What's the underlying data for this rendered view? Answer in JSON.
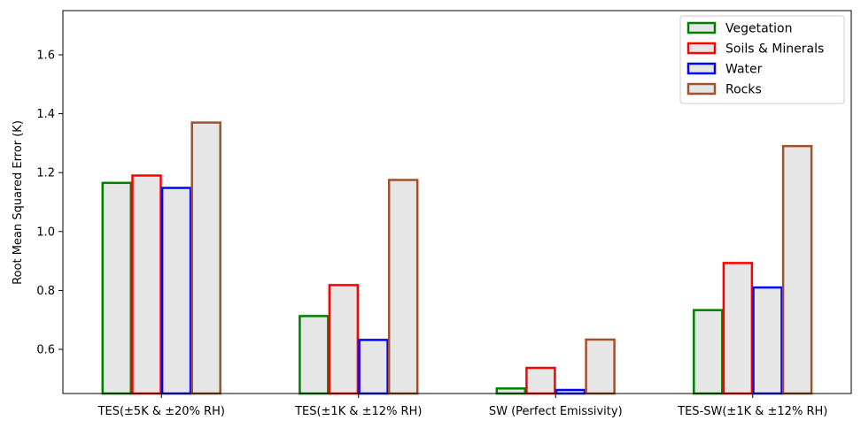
{
  "chart_data": {
    "type": "bar",
    "ylabel": "Root Mean Squared Error (K)",
    "xlabel": "",
    "ylim": [
      0.45,
      1.75
    ],
    "yticks": [
      0.6,
      0.8,
      1.0,
      1.2,
      1.4,
      1.6
    ],
    "ytick_labels": [
      "0.6",
      "0.8",
      "1.0",
      "1.2",
      "1.4",
      "1.6"
    ],
    "categories": [
      "TES(±5K & ±20% RH)",
      "TES(±1K & ±12% RH)",
      "SW (Perfect Emissivity)",
      "TES-SW(±1K & ±12% RH)"
    ],
    "series": [
      {
        "name": "Vegetation",
        "color": "#008000",
        "values": [
          1.165,
          0.713,
          0.467,
          0.733
        ]
      },
      {
        "name": "Soils & Minerals",
        "color": "#ff0000",
        "values": [
          1.19,
          0.818,
          0.537,
          0.893
        ]
      },
      {
        "name": "Water",
        "color": "#0000ff",
        "values": [
          1.148,
          0.632,
          0.462,
          0.81
        ]
      },
      {
        "name": "Rocks",
        "color": "#a0522d",
        "values": [
          1.37,
          1.175,
          0.633,
          1.29
        ]
      }
    ],
    "bar_fill": "#e6e6e6",
    "grid": false,
    "legend_position": "top-right"
  }
}
